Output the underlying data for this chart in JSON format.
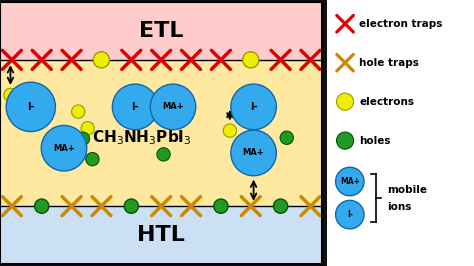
{
  "fig_width": 4.74,
  "fig_height": 2.66,
  "dpi": 100,
  "bg_color": "#111111",
  "outer_box_bg": "#ffffff",
  "etl_color": "#ffcccc",
  "perovskite_color": "#ffe8a0",
  "htl_color": "#cce0f5",
  "etl_label": "ETL",
  "htl_label": "HTL",
  "perovskite_label": "CH$_3$NH$_3$PbI$_3$",
  "electron_trap_color": "#dd0000",
  "hole_trap_color": "#cc8800",
  "electron_color": "#eeee00",
  "electron_edge": "#999900",
  "hole_color": "#229922",
  "hole_edge": "#005500",
  "ion_bg_color": "#33aaee",
  "ion_edge_color": "#1166aa",
  "legend_bg": "#ffffff",
  "text_color": "#000000"
}
